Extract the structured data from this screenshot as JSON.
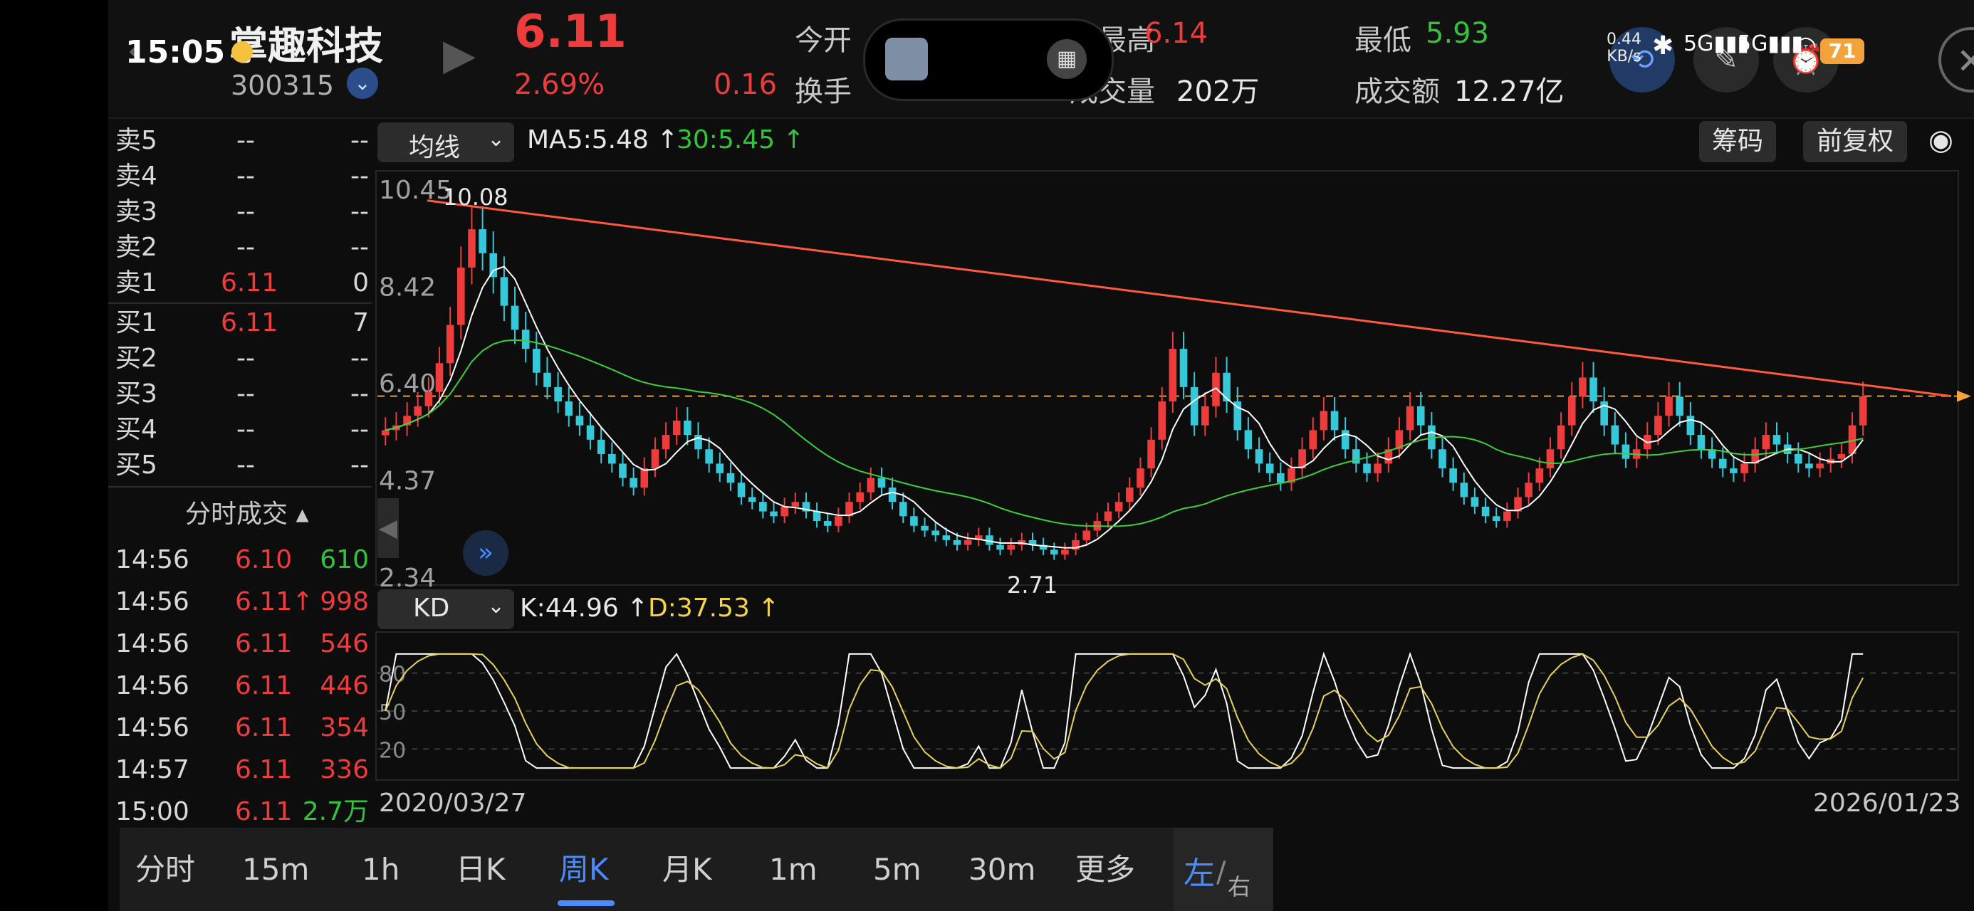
{
  "status": {
    "time": "15:05",
    "net_speed": "0.44",
    "net_unit": "KB/s",
    "battery": "71"
  },
  "stock": {
    "name": "掌趣科技",
    "code": "300315",
    "price": "6.11",
    "change_pct": "2.69%",
    "change_amt": "0.16",
    "open_label": "今开",
    "high_label": "最高",
    "high_value": "6.14",
    "low_label": "最低",
    "low_value": "5.93",
    "turnover_label": "换手",
    "volume_label": "成交量",
    "volume_value": "202万",
    "amount_label": "成交额",
    "amount_value": "12.27亿"
  },
  "orderbook": {
    "asks": [
      {
        "label": "卖5",
        "price": "--",
        "vol": "--"
      },
      {
        "label": "卖4",
        "price": "--",
        "vol": "--"
      },
      {
        "label": "卖3",
        "price": "--",
        "vol": "--"
      },
      {
        "label": "卖2",
        "price": "--",
        "vol": "--"
      },
      {
        "label": "卖1",
        "price": "6.11",
        "vol": "0"
      }
    ],
    "bids": [
      {
        "label": "买1",
        "price": "6.11",
        "vol": "7"
      },
      {
        "label": "买2",
        "price": "--",
        "vol": "--"
      },
      {
        "label": "买3",
        "price": "--",
        "vol": "--"
      },
      {
        "label": "买4",
        "price": "--",
        "vol": "--"
      },
      {
        "label": "买5",
        "price": "--",
        "vol": "--"
      }
    ],
    "trades_title": "分时成交",
    "trades": [
      {
        "time": "14:56",
        "price": "6.10",
        "vol": "610",
        "vol_color": "green"
      },
      {
        "time": "14:56",
        "price": "6.11↑",
        "vol": "998",
        "vol_color": "red"
      },
      {
        "time": "14:56",
        "price": "6.11",
        "vol": "546",
        "vol_color": "red"
      },
      {
        "time": "14:56",
        "price": "6.11",
        "vol": "446",
        "vol_color": "red"
      },
      {
        "time": "14:56",
        "price": "6.11",
        "vol": "354",
        "vol_color": "red"
      },
      {
        "time": "14:57",
        "price": "6.11",
        "vol": "336",
        "vol_color": "red"
      },
      {
        "time": "15:00",
        "price": "6.11",
        "vol": "2.7万",
        "vol_color": "green"
      }
    ]
  },
  "toolbar": {
    "indicator": "均线",
    "ma5": "MA5:5.48",
    "ma30": "30:5.45",
    "chips_label": "筹码",
    "adjust_label": "前复权"
  },
  "kd": {
    "indicator": "KD",
    "k_text": "K:44.96",
    "d_text": "D:37.53",
    "levels": [
      "80",
      "50",
      "20"
    ]
  },
  "chart_data": {
    "type": "candlestick",
    "interval": "周K",
    "y_ticks": [
      "10.45",
      "8.42",
      "6.40",
      "4.37",
      "2.34"
    ],
    "max_label": "10.08",
    "min_label": "2.71",
    "date_start": "2020/03/27",
    "date_end": "2026/01/23",
    "last_price": 6.11,
    "closes": [
      5.4,
      5.5,
      5.7,
      5.9,
      6.2,
      6.8,
      7.6,
      8.8,
      9.6,
      9.1,
      8.6,
      8.0,
      7.5,
      7.1,
      6.6,
      6.3,
      6.0,
      5.7,
      5.5,
      5.2,
      4.9,
      4.7,
      4.4,
      4.2,
      4.6,
      5.0,
      5.3,
      5.6,
      5.3,
      5.0,
      4.7,
      4.5,
      4.3,
      4.0,
      3.9,
      3.7,
      3.6,
      3.8,
      3.9,
      3.7,
      3.5,
      3.4,
      3.6,
      3.9,
      4.1,
      4.4,
      4.2,
      3.9,
      3.6,
      3.4,
      3.3,
      3.2,
      3.1,
      3.0,
      3.1,
      3.2,
      3.0,
      2.9,
      3.0,
      3.1,
      3.0,
      2.9,
      2.8,
      2.9,
      3.1,
      3.3,
      3.5,
      3.7,
      3.9,
      4.2,
      4.6,
      5.2,
      6.0,
      7.1,
      6.3,
      5.5,
      5.9,
      6.6,
      6.0,
      5.4,
      5.0,
      4.7,
      4.5,
      4.3,
      4.6,
      5.0,
      5.4,
      5.8,
      5.4,
      5.0,
      4.7,
      4.5,
      4.7,
      5.0,
      5.4,
      5.9,
      5.5,
      5.0,
      4.6,
      4.3,
      4.0,
      3.8,
      3.6,
      3.5,
      3.7,
      4.0,
      4.3,
      4.6,
      5.0,
      5.5,
      6.1,
      6.5,
      6.0,
      5.5,
      5.1,
      4.8,
      5.0,
      5.3,
      5.7,
      6.1,
      5.7,
      5.3,
      5.0,
      4.8,
      4.6,
      4.5,
      4.7,
      5.0,
      5.3,
      5.1,
      4.9,
      4.7,
      4.6,
      4.7,
      4.8,
      4.9,
      5.5,
      6.11
    ],
    "ma5_last": 5.48,
    "ma30_last": 5.45,
    "k_last": 44.96,
    "d_last": 37.53
  },
  "tabs": [
    {
      "label": "分时",
      "active": false
    },
    {
      "label": "15m",
      "active": false
    },
    {
      "label": "1h",
      "active": false
    },
    {
      "label": "日K",
      "active": false
    },
    {
      "label": "周K",
      "active": true
    },
    {
      "label": "月K",
      "active": false
    },
    {
      "label": "1m",
      "active": false
    },
    {
      "label": "5m",
      "active": false
    },
    {
      "label": "30m",
      "active": false
    },
    {
      "label": "更多",
      "active": false
    }
  ],
  "side_toggle": {
    "left": "左",
    "right": "右"
  },
  "colors": {
    "up": "#ee3b3b",
    "down": "#35c8d9",
    "ma5": "#ffffff",
    "ma30": "#3bcf3b",
    "trend": "#ff5a3c",
    "kd_k": "#ffffff",
    "kd_d": "#e6d15a",
    "active_tab": "#4a8cff"
  }
}
